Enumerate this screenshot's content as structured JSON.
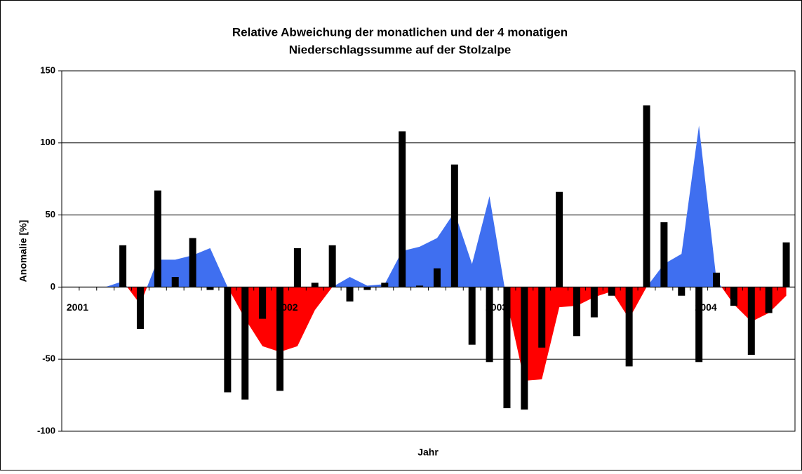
{
  "chart_data": {
    "type": "bar",
    "title": [
      "Relative Abweichung der monatlichen und der  4 monatigen",
      "Niederschlagssumme auf der Stolzalpe"
    ],
    "y_label": "Anomalie [%]",
    "x_label": "Jahr",
    "categories": [
      "2001",
      null,
      null,
      null,
      null,
      null,
      null,
      null,
      null,
      null,
      null,
      null,
      "2002",
      null,
      null,
      null,
      null,
      null,
      null,
      null,
      null,
      null,
      null,
      null,
      "2003",
      null,
      null,
      null,
      null,
      null,
      null,
      null,
      null,
      null,
      null,
      null,
      "2004",
      null,
      null,
      null,
      null,
      null
    ],
    "ylim": [
      -100,
      150
    ],
    "yticks": [
      -100,
      -50,
      0,
      50,
      100,
      150
    ],
    "grid": true,
    "series": [
      {
        "type": "area",
        "color": "#3f6ff0",
        "negative_color": "#ff0000",
        "values": [
          0,
          0,
          0,
          4,
          -12,
          19,
          19,
          22,
          27,
          0,
          -22,
          -41,
          -45,
          -41,
          -16,
          0,
          7,
          1,
          2,
          25,
          28,
          34,
          52,
          16,
          63,
          -10,
          -65,
          -64,
          -14,
          -13,
          -7,
          -3,
          -22,
          0,
          16,
          23,
          112,
          5,
          -12,
          -24,
          -18,
          -6
        ]
      },
      {
        "type": "bar",
        "color": "#000000",
        "values": [
          null,
          null,
          null,
          29,
          -29,
          67,
          7,
          34,
          -2,
          -73,
          -78,
          -22,
          -72,
          27,
          3,
          29,
          -10,
          -2,
          3,
          108,
          1,
          13,
          85,
          -40,
          -52,
          -84,
          -85,
          -42,
          66,
          -34,
          -21,
          -6,
          -55,
          126,
          45,
          -6,
          -52,
          10,
          -13,
          -47,
          -18,
          31
        ]
      }
    ]
  }
}
